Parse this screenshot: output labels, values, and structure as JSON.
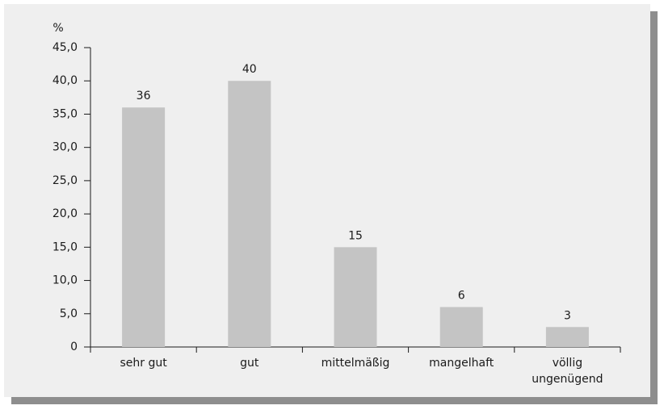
{
  "chart_data": {
    "type": "bar",
    "y_label": "%",
    "categories": [
      "sehr gut",
      "gut",
      "mittelmäßig",
      "mangelhaft",
      "völlig ungenügend"
    ],
    "values": [
      36,
      40,
      15,
      6,
      3
    ],
    "color": "#c4c4c4",
    "ylim": [
      0,
      45
    ],
    "yticks": [
      0,
      {
        "value": 5,
        "label": "5,0"
      },
      {
        "value": 10,
        "label": "10,0"
      },
      {
        "value": 15,
        "label": "15,0"
      },
      {
        "value": 20,
        "label": "20,0"
      },
      {
        "value": 25,
        "label": "25,0"
      },
      {
        "value": 30,
        "label": "30,0"
      },
      {
        "value": 35,
        "label": "35,0"
      },
      {
        "value": 40,
        "label": "40,0"
      },
      {
        "value": 45,
        "label": "45,0"
      }
    ],
    "grid": false
  }
}
